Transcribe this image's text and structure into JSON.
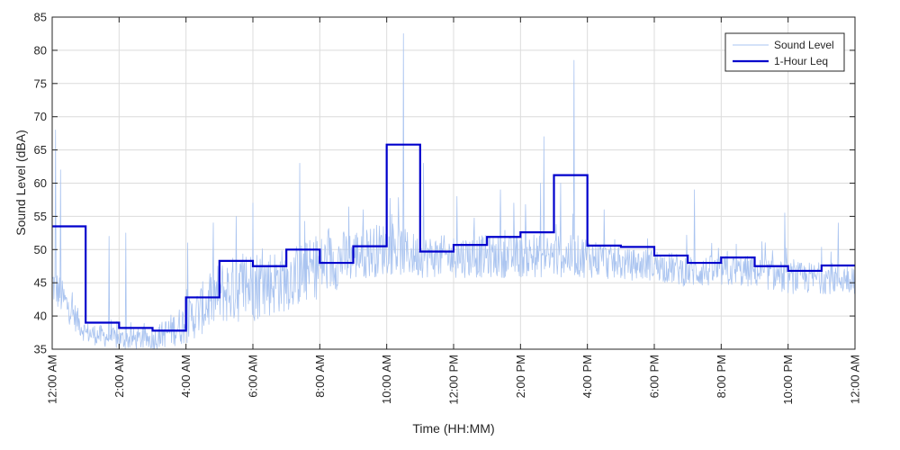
{
  "chart_data": {
    "type": "line",
    "xlabel": "Time (HH:MM)",
    "ylabel": "Sound Level (dBA)",
    "xlim": [
      0,
      24
    ],
    "ylim": [
      35,
      85
    ],
    "grid": true,
    "legend_position": "top-right",
    "x_ticks": [
      0,
      2,
      4,
      6,
      8,
      10,
      12,
      14,
      16,
      18,
      20,
      22,
      24
    ],
    "x_tick_labels": [
      "12:00 AM",
      "2:00 AM",
      "4:00 AM",
      "6:00 AM",
      "8:00 AM",
      "10:00 AM",
      "12:00 PM",
      "2:00 PM",
      "4:00 PM",
      "6:00 PM",
      "8:00 PM",
      "10:00 PM",
      "12:00 AM"
    ],
    "y_ticks": [
      35,
      40,
      45,
      50,
      55,
      60,
      65,
      70,
      75,
      80,
      85
    ],
    "y_tick_labels": [
      "35",
      "40",
      "45",
      "50",
      "55",
      "60",
      "65",
      "70",
      "75",
      "80",
      "85"
    ],
    "series": [
      {
        "name": "Sound Level",
        "color": "#aac4f0",
        "hourly_baseline": [
          44,
          37,
          36,
          36,
          38,
          42,
          43,
          44,
          46,
          48,
          49,
          48,
          48,
          48,
          48,
          48,
          48,
          47,
          47,
          46,
          46,
          46,
          45,
          45
        ],
        "hourly_spread": [
          4,
          2,
          2,
          2,
          4,
          6,
          7,
          6,
          6,
          5,
          5,
          4,
          4,
          4,
          4,
          4,
          4,
          3,
          3,
          3,
          3,
          3,
          3,
          3
        ],
        "peaks": [
          {
            "x": 0.1,
            "y": 68
          },
          {
            "x": 0.25,
            "y": 62
          },
          {
            "x": 1.7,
            "y": 52
          },
          {
            "x": 2.2,
            "y": 52.5
          },
          {
            "x": 4.05,
            "y": 51
          },
          {
            "x": 5.5,
            "y": 55
          },
          {
            "x": 6.0,
            "y": 57
          },
          {
            "x": 7.4,
            "y": 63
          },
          {
            "x": 9.3,
            "y": 56
          },
          {
            "x": 10.5,
            "y": 82.5
          },
          {
            "x": 11.1,
            "y": 63
          },
          {
            "x": 12.1,
            "y": 58
          },
          {
            "x": 13.4,
            "y": 59
          },
          {
            "x": 13.8,
            "y": 57
          },
          {
            "x": 14.7,
            "y": 67
          },
          {
            "x": 14.6,
            "y": 60
          },
          {
            "x": 15.2,
            "y": 60
          },
          {
            "x": 15.6,
            "y": 78.5
          },
          {
            "x": 16.5,
            "y": 56
          },
          {
            "x": 19.2,
            "y": 59
          },
          {
            "x": 21.9,
            "y": 55.5
          },
          {
            "x": 23.5,
            "y": 54
          }
        ]
      },
      {
        "name": "1-Hour Leq",
        "color": "#0000cc",
        "x": [
          0,
          1,
          2,
          3,
          4,
          5,
          6,
          7,
          8,
          9,
          10,
          11,
          12,
          13,
          14,
          15,
          16,
          17,
          18,
          19,
          20,
          21,
          22,
          23
        ],
        "values": [
          53.5,
          39.0,
          38.2,
          37.8,
          42.8,
          48.3,
          47.5,
          50.0,
          48.0,
          50.5,
          65.8,
          49.7,
          50.7,
          51.9,
          52.6,
          61.2,
          50.6,
          50.4,
          49.1,
          48.0,
          48.8,
          47.5,
          46.8,
          47.6
        ]
      }
    ]
  }
}
